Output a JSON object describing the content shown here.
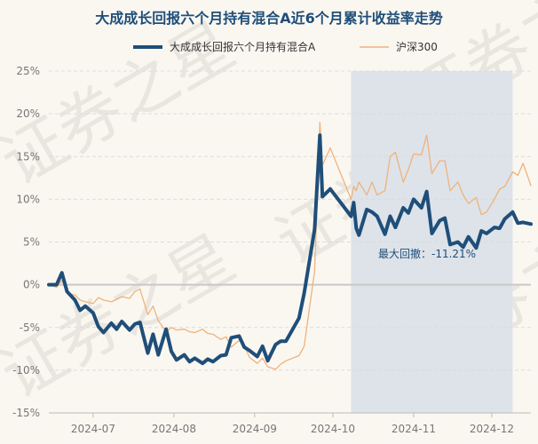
{
  "chart_data": {
    "type": "line",
    "title": "大成成长回报六个月持有混合A近6个月累计收益率走势",
    "watermark": "证券之星",
    "ylim": [
      -15,
      25
    ],
    "yticks": [
      "25%",
      "20%",
      "15%",
      "10%",
      "5%",
      "0%",
      "-5%",
      "-10%",
      "-15%"
    ],
    "ytick_values": [
      25,
      20,
      15,
      10,
      5,
      0,
      -5,
      -10,
      -15
    ],
    "xticks": [
      "2024-07",
      "2024-08",
      "2024-09",
      "2024-10",
      "2024-11",
      "2024-12"
    ],
    "xtick_dates": [
      "2024-07-01",
      "2024-08-01",
      "2024-09-01",
      "2024-10-01",
      "2024-11-01",
      "2024-12-01"
    ],
    "x_range": [
      "2024-06-14",
      "2024-12-16"
    ],
    "grid": true,
    "legend_position": "top",
    "colors": {
      "fund": "#1f4e79",
      "index": "#f0b27a",
      "shade": "#dde3e9",
      "grid": "#dcdcdc",
      "zero": "#c8c8c8"
    },
    "drawdown": {
      "start": "2024-10-08",
      "end": "2024-12-09",
      "label": "最大回撤：-11.21%"
    },
    "series": [
      {
        "name": "大成成长回报六个月持有混合A",
        "x": [
          "2024-06-14",
          "2024-06-17",
          "2024-06-19",
          "2024-06-21",
          "2024-06-24",
          "2024-06-26",
          "2024-06-28",
          "2024-07-01",
          "2024-07-03",
          "2024-07-05",
          "2024-07-08",
          "2024-07-10",
          "2024-07-12",
          "2024-07-15",
          "2024-07-17",
          "2024-07-19",
          "2024-07-22",
          "2024-07-24",
          "2024-07-26",
          "2024-07-29",
          "2024-07-31",
          "2024-08-02",
          "2024-08-05",
          "2024-08-07",
          "2024-08-09",
          "2024-08-12",
          "2024-08-14",
          "2024-08-16",
          "2024-08-19",
          "2024-08-21",
          "2024-08-23",
          "2024-08-26",
          "2024-08-28",
          "2024-08-30",
          "2024-09-02",
          "2024-09-04",
          "2024-09-06",
          "2024-09-09",
          "2024-09-11",
          "2024-09-13",
          "2024-09-18",
          "2024-09-20",
          "2024-09-24",
          "2024-09-26",
          "2024-09-27",
          "2024-09-30",
          "2024-10-08",
          "2024-10-09",
          "2024-10-10",
          "2024-10-11",
          "2024-10-14",
          "2024-10-16",
          "2024-10-18",
          "2024-10-21",
          "2024-10-23",
          "2024-10-25",
          "2024-10-28",
          "2024-10-30",
          "2024-11-01",
          "2024-11-04",
          "2024-11-06",
          "2024-11-08",
          "2024-11-11",
          "2024-11-13",
          "2024-11-15",
          "2024-11-18",
          "2024-11-20",
          "2024-11-22",
          "2024-11-25",
          "2024-11-27",
          "2024-11-29",
          "2024-12-02",
          "2024-12-04",
          "2024-12-06",
          "2024-12-09",
          "2024-12-11",
          "2024-12-13",
          "2024-12-16"
        ],
        "values": [
          0.0,
          0.0,
          1.4,
          -0.8,
          -1.8,
          -3.0,
          -2.5,
          -3.3,
          -4.9,
          -5.6,
          -4.5,
          -5.2,
          -4.3,
          -5.3,
          -4.6,
          -4.4,
          -8.0,
          -5.8,
          -8.2,
          -5.2,
          -7.8,
          -8.8,
          -8.2,
          -9.0,
          -8.6,
          -9.2,
          -8.7,
          -9.0,
          -8.3,
          -8.2,
          -6.2,
          -6.0,
          -7.3,
          -7.7,
          -8.4,
          -7.2,
          -8.9,
          -7.0,
          -6.6,
          -6.6,
          -3.9,
          -1.0,
          6.5,
          17.5,
          10.3,
          11.2,
          8.0,
          9.6,
          6.6,
          5.8,
          8.8,
          8.5,
          8.0,
          5.9,
          8.0,
          6.7,
          9.0,
          8.4,
          10.0,
          9.0,
          10.9,
          6.0,
          7.5,
          7.8,
          4.7,
          5.0,
          4.4,
          5.6,
          4.3,
          6.3,
          6.0,
          6.7,
          6.6,
          7.7,
          8.5,
          7.2,
          7.3,
          7.1
        ]
      },
      {
        "name": "沪深300",
        "x": [
          "2024-06-14",
          "2024-06-17",
          "2024-06-19",
          "2024-06-21",
          "2024-06-24",
          "2024-06-26",
          "2024-06-28",
          "2024-07-01",
          "2024-07-03",
          "2024-07-05",
          "2024-07-08",
          "2024-07-10",
          "2024-07-12",
          "2024-07-15",
          "2024-07-17",
          "2024-07-19",
          "2024-07-22",
          "2024-07-24",
          "2024-07-26",
          "2024-07-29",
          "2024-07-31",
          "2024-08-02",
          "2024-08-05",
          "2024-08-07",
          "2024-08-09",
          "2024-08-12",
          "2024-08-14",
          "2024-08-16",
          "2024-08-19",
          "2024-08-21",
          "2024-08-23",
          "2024-08-26",
          "2024-08-28",
          "2024-08-30",
          "2024-09-02",
          "2024-09-04",
          "2024-09-06",
          "2024-09-09",
          "2024-09-11",
          "2024-09-13",
          "2024-09-18",
          "2024-09-20",
          "2024-09-24",
          "2024-09-26",
          "2024-09-27",
          "2024-09-30",
          "2024-10-08",
          "2024-10-09",
          "2024-10-10",
          "2024-10-11",
          "2024-10-14",
          "2024-10-16",
          "2024-10-18",
          "2024-10-21",
          "2024-10-23",
          "2024-10-25",
          "2024-10-28",
          "2024-10-30",
          "2024-11-01",
          "2024-11-04",
          "2024-11-06",
          "2024-11-08",
          "2024-11-11",
          "2024-11-13",
          "2024-11-15",
          "2024-11-18",
          "2024-11-20",
          "2024-11-22",
          "2024-11-25",
          "2024-11-27",
          "2024-11-29",
          "2024-12-02",
          "2024-12-04",
          "2024-12-06",
          "2024-12-09",
          "2024-12-11",
          "2024-12-13",
          "2024-12-16"
        ],
        "values": [
          0.0,
          -0.3,
          0.5,
          -1.0,
          -1.2,
          -1.8,
          -2.0,
          -2.2,
          -1.5,
          -1.8,
          -2.0,
          -1.7,
          -1.4,
          -1.6,
          -0.8,
          -0.5,
          -3.5,
          -2.5,
          -4.2,
          -5.5,
          -5.0,
          -5.3,
          -5.2,
          -5.5,
          -5.6,
          -5.2,
          -5.7,
          -5.8,
          -6.4,
          -6.1,
          -7.3,
          -6.5,
          -7.1,
          -8.5,
          -9.2,
          -8.6,
          -9.6,
          -9.9,
          -9.3,
          -8.9,
          -8.3,
          -7.2,
          1.6,
          19.0,
          14.0,
          16.0,
          10.0,
          11.5,
          11.0,
          12.0,
          10.5,
          12.0,
          10.5,
          11.0,
          15.0,
          15.5,
          12.0,
          13.5,
          15.3,
          15.2,
          17.5,
          13.0,
          14.5,
          14.5,
          11.0,
          12.0,
          10.5,
          9.5,
          10.2,
          8.2,
          8.5,
          10.0,
          11.2,
          11.5,
          13.2,
          12.8,
          14.2,
          11.6
        ]
      }
    ]
  }
}
